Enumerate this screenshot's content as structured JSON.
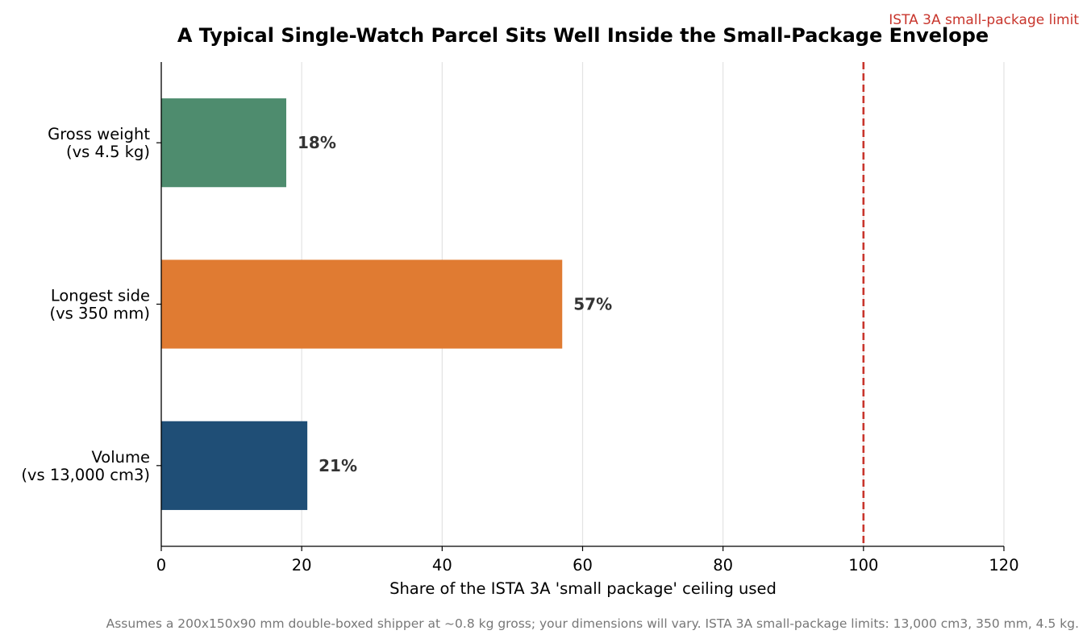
{
  "chart_data": {
    "type": "bar",
    "orientation": "horizontal",
    "title": "A Typical Single-Watch Parcel Sits Well Inside the Small-Package Envelope",
    "xlabel": "Share of the ISTA 3A 'small package' ceiling used",
    "ylabel": "",
    "xlim": [
      0,
      120
    ],
    "xticks": [
      0,
      20,
      40,
      60,
      80,
      100,
      120
    ],
    "grid": "x",
    "categories": [
      [
        "Gross weight",
        "(vs 4.5 kg)"
      ],
      [
        "Longest side",
        "(vs 350 mm)"
      ],
      [
        "Volume",
        "(vs 13,000 cm3)"
      ]
    ],
    "values": [
      17.8,
      57.1,
      20.8
    ],
    "value_labels": [
      "18%",
      "57%",
      "21%"
    ],
    "colors": [
      "#4e8c6e",
      "#e07b32",
      "#1f4e76"
    ],
    "reference_line": {
      "value": 100,
      "label": "ISTA 3A small-package limit",
      "color": "#c8352c",
      "style": "dashed"
    },
    "footnote": "Assumes a 200x150x90 mm double-boxed shipper at ~0.8 kg gross; your dimensions will vary. ISTA 3A small-package limits: 13,000 cm3, 350 mm, 4.5 kg."
  }
}
